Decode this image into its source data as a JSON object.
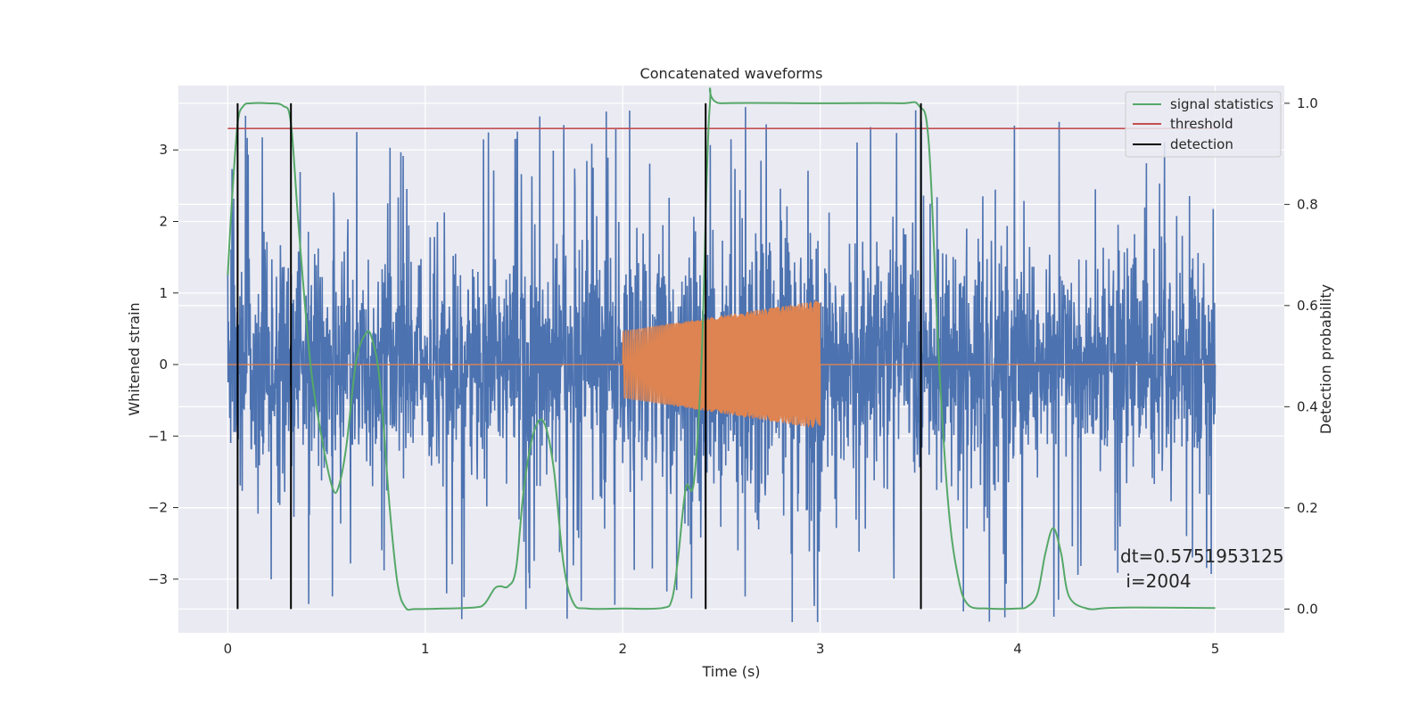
{
  "chart_data": {
    "type": "line",
    "title": "Concatenated waveforms",
    "xlabel": "Time (s)",
    "ylabel": "Whitened strain",
    "y2label": "Detection probability",
    "xlim": [
      -0.25,
      5.35
    ],
    "ylim": [
      -3.75,
      3.9
    ],
    "y2lim": [
      -0.047,
      1.035
    ],
    "xticks": [
      0,
      1,
      2,
      3,
      4,
      5
    ],
    "yticks": [
      -3,
      -2,
      -1,
      0,
      1,
      2,
      3
    ],
    "y2ticks": [
      0.0,
      0.2,
      0.4,
      0.6,
      0.8,
      1.0
    ],
    "y2tick_labels": [
      "0.0",
      "0.2",
      "0.4",
      "0.6",
      "0.8",
      "1.0"
    ],
    "grid": true,
    "legend_position": "upper-right",
    "colors": {
      "background": "#eaeaf2",
      "grid": "#ffffff",
      "strain": "#4c72b0",
      "injection": "#dd8452",
      "signal_statistics": "#55a868",
      "threshold": "#c44e52",
      "detection": "#000000"
    },
    "series": [
      {
        "name": "strain",
        "axis": "left",
        "x_range": [
          0,
          5
        ],
        "noise_std": 0.75,
        "spike_max": 3.6
      },
      {
        "name": "injection",
        "axis": "left",
        "x_range": [
          0,
          5
        ],
        "chirp_start": 2.0,
        "chirp_end": 3.0,
        "amplitude_start": 0.47,
        "amplitude_end": 0.9
      },
      {
        "name": "signal statistics",
        "axis": "right",
        "x": [
          0.0,
          0.02,
          0.05,
          0.08,
          0.12,
          0.2,
          0.28,
          0.32,
          0.36,
          0.42,
          0.48,
          0.53,
          0.56,
          0.6,
          0.65,
          0.7,
          0.73,
          0.77,
          0.82,
          0.86,
          0.9,
          0.95,
          1.1,
          1.25,
          1.3,
          1.35,
          1.38,
          1.42,
          1.46,
          1.5,
          1.55,
          1.6,
          1.65,
          1.7,
          1.75,
          1.82,
          2.0,
          2.2,
          2.25,
          2.28,
          2.32,
          2.36,
          2.4,
          2.44,
          2.5,
          3.0,
          3.4,
          3.5,
          3.55,
          3.6,
          3.65,
          3.7,
          3.75,
          3.85,
          4.0,
          4.05,
          4.1,
          4.14,
          4.18,
          4.22,
          4.26,
          4.35,
          4.45,
          4.6,
          5.0
        ],
        "y": [
          0.66,
          0.8,
          0.96,
          0.995,
          1.0,
          1.0,
          0.995,
          0.96,
          0.75,
          0.48,
          0.33,
          0.24,
          0.24,
          0.32,
          0.49,
          0.545,
          0.535,
          0.45,
          0.2,
          0.05,
          0.003,
          0.0,
          0.001,
          0.003,
          0.01,
          0.04,
          0.045,
          0.045,
          0.08,
          0.24,
          0.35,
          0.37,
          0.28,
          0.09,
          0.012,
          0.001,
          0.001,
          0.002,
          0.02,
          0.1,
          0.24,
          0.25,
          0.5,
          0.99,
          1.0,
          1.0,
          1.0,
          0.995,
          0.92,
          0.5,
          0.2,
          0.06,
          0.008,
          0.001,
          0.001,
          0.005,
          0.03,
          0.11,
          0.16,
          0.11,
          0.025,
          0.001,
          0.002,
          0.003,
          0.002
        ]
      },
      {
        "name": "threshold",
        "axis": "right",
        "x": [
          0,
          5
        ],
        "y": [
          0.95,
          0.95
        ]
      },
      {
        "name": "detection",
        "axis": "right",
        "x": [
          0.05,
          0.32,
          2.42,
          3.51
        ],
        "y_range": [
          0.0,
          1.0
        ]
      }
    ],
    "legend": [
      "signal statistics",
      "threshold",
      "detection"
    ],
    "annotation": {
      "line1": "dt=0.5751953125",
      "line2": " i=2004"
    }
  }
}
